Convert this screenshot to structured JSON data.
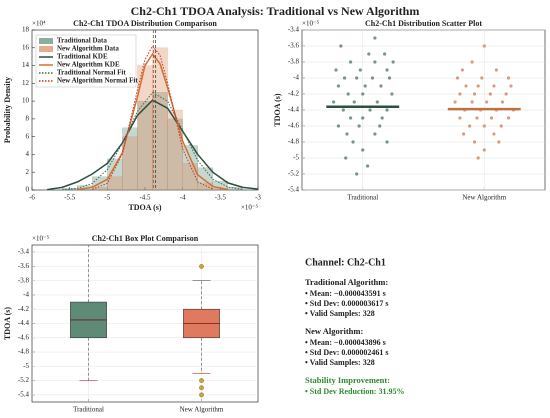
{
  "title": "Ch2-Ch1 TDOA Analysis: Traditional vs New Algorithm",
  "chart_data": [
    {
      "type": "histogram",
      "title": "Ch2-Ch1 TDOA Distribution Comparison",
      "xlabel": "TDOA (s)",
      "ylabel": "Probability Density",
      "x_multiplier": "×10⁻⁵",
      "y_multiplier": "×10⁴",
      "xlim": [
        -6,
        -3
      ],
      "ylim": [
        0,
        18
      ],
      "xticks": [
        -6,
        -5.5,
        -5,
        -4.5,
        -4,
        -3.5,
        -3
      ],
      "yticks": [
        0,
        2,
        4,
        6,
        8,
        10,
        12,
        14,
        16,
        18
      ],
      "grid": false,
      "legend": "upper-left",
      "bins": [
        -5.6,
        -5.4,
        -5.2,
        -5,
        -4.8,
        -4.6,
        -4.4,
        -4.2,
        -4,
        -3.8,
        -3.6,
        -3.4,
        -3.2
      ],
      "histograms": [
        {
          "name": "Traditional Data",
          "color": "#5e8a76",
          "values": [
            0.2,
            0.5,
            1.5,
            3.5,
            7,
            10,
            11,
            8,
            5,
            2.5,
            1,
            0.3
          ]
        },
        {
          "name": "New Algorithm Data",
          "color": "#d98a5e",
          "values": [
            0,
            0,
            0.3,
            1.5,
            6,
            14,
            16,
            9,
            3,
            0.8,
            0.2,
            0
          ]
        }
      ],
      "lines": [
        {
          "name": "Traditional KDE",
          "color": "#2f4f3f",
          "style": "solid",
          "x": [
            -5.8,
            -5.6,
            -5.4,
            -5.2,
            -5,
            -4.8,
            -4.6,
            -4.4,
            -4.2,
            -4,
            -3.8,
            -3.6,
            -3.4,
            -3.2,
            -3
          ],
          "values": [
            0.05,
            0.3,
            0.9,
            1.8,
            3,
            5.3,
            8.4,
            10.1,
            9.2,
            6.6,
            4,
            2,
            0.8,
            0.3,
            0.1
          ]
        },
        {
          "name": "New Algorithm KDE",
          "color": "#d2702f",
          "style": "solid",
          "x": [
            -5.4,
            -5.2,
            -5,
            -4.8,
            -4.6,
            -4.5,
            -4.4,
            -4.3,
            -4.2,
            -4,
            -3.8,
            -3.6,
            -3.4
          ],
          "values": [
            0.05,
            0.3,
            1.2,
            4.2,
            10.5,
            14,
            15.3,
            14.2,
            11.5,
            5.5,
            1.7,
            0.4,
            0.05
          ]
        },
        {
          "name": "Traditional Normal Fit",
          "color": "#3d6b57",
          "style": "dotted",
          "x": [
            -5.6,
            -5.4,
            -5.2,
            -5,
            -4.8,
            -4.6,
            -4.4,
            -4.2,
            -4,
            -3.8,
            -3.6,
            -3.4,
            -3.2
          ],
          "values": [
            0.03,
            0.18,
            0.74,
            2.3,
            5.26,
            8.85,
            10.96,
            10,
            6.72,
            3.33,
            1.21,
            0.33,
            0.07
          ]
        },
        {
          "name": "New Algorithm Normal Fit",
          "color": "#c0392b",
          "style": "dotted",
          "x": [
            -5.2,
            -5,
            -4.8,
            -4.6,
            -4.5,
            -4.4,
            -4.3,
            -4.2,
            -4,
            -3.8,
            -3.6
          ],
          "values": [
            0.07,
            0.75,
            4.05,
            11.27,
            14.67,
            16.2,
            15.16,
            12.03,
            4.62,
            0.92,
            0.1
          ]
        }
      ],
      "mean_lines": [
        {
          "value": -4.3591,
          "color": "#2f4f3f"
        },
        {
          "value": -4.3896,
          "color": "#c0392b"
        }
      ]
    },
    {
      "type": "scatter",
      "title": "Ch2-Ch1 Distribution Scatter Plot",
      "ylabel": "TDOA (s)",
      "y_multiplier": "×10⁻⁵",
      "xlim": [
        0.5,
        2.5
      ],
      "ylim": [
        -5.4,
        -3.4
      ],
      "xticks": [
        {
          "value": 1,
          "label": "Traditional"
        },
        {
          "value": 2,
          "label": "New Algorithm"
        }
      ],
      "yticks": [
        -5.4,
        -5.2,
        -5,
        -4.8,
        -4.6,
        -4.4,
        -4.2,
        -4,
        -3.8,
        -3.6,
        -3.4
      ],
      "grid": true,
      "series": [
        {
          "color": "#3d6b57",
          "x": [
            0.82,
            1.05,
            1.18,
            0.9,
            1.1,
            1.25,
            0.78,
            0.98,
            1.2,
            0.85,
            0.95,
            1.08,
            1.22,
            0.8,
            1.02,
            1.15,
            0.88,
            1.0,
            1.24,
            0.76,
            0.93,
            1.12,
            0.84,
            1.06,
            1.2,
            0.9,
            1.0,
            1.16,
            0.8,
            0.97,
            1.14,
            0.87,
            1.1,
            0.92,
            1.2,
            1.0,
            0.86,
            1.04,
            0.95,
            1.1
          ],
          "values": [
            -3.6,
            -3.7,
            -3.7,
            -3.8,
            -3.8,
            -3.8,
            -3.9,
            -3.9,
            -3.9,
            -4.0,
            -4.0,
            -4.0,
            -4.0,
            -4.1,
            -4.1,
            -4.1,
            -4.2,
            -4.2,
            -4.2,
            -4.3,
            -4.3,
            -4.3,
            -4.4,
            -4.4,
            -4.4,
            -4.5,
            -4.5,
            -4.5,
            -4.6,
            -4.6,
            -4.6,
            -4.7,
            -4.7,
            -4.8,
            -4.8,
            -4.9,
            -5.0,
            -5.1,
            -5.2,
            -3.5
          ]
        },
        {
          "color": "#c8744f",
          "x": [
            1.9,
            1.82,
            2.1,
            1.78,
            1.98,
            2.2,
            1.85,
            1.95,
            2.08,
            2.22,
            1.8,
            1.92,
            2.05,
            2.18,
            1.76,
            1.9,
            2.02,
            2.15,
            1.84,
            1.97,
            2.1,
            2.24,
            1.8,
            1.94,
            2.06,
            2.2,
            1.88,
            2.0,
            2.14,
            1.83,
            2.08,
            1.92,
            2.12,
            2.0,
            1.95,
            2.0
          ],
          "values": [
            -3.8,
            -3.9,
            -3.9,
            -4.0,
            -4.0,
            -4.0,
            -4.1,
            -4.1,
            -4.1,
            -4.1,
            -4.2,
            -4.2,
            -4.2,
            -4.2,
            -4.3,
            -4.3,
            -4.3,
            -4.3,
            -4.4,
            -4.4,
            -4.4,
            -4.4,
            -4.5,
            -4.5,
            -4.5,
            -4.5,
            -4.6,
            -4.6,
            -4.6,
            -4.7,
            -4.7,
            -4.8,
            -4.8,
            -4.9,
            -5.0,
            -3.6
          ]
        }
      ],
      "mean_bars": [
        {
          "x": 1,
          "value": -4.3591,
          "color": "#2f4f3f"
        },
        {
          "x": 2,
          "value": -4.3896,
          "color": "#c0703a"
        }
      ]
    },
    {
      "type": "box",
      "title": "Ch2-Ch1 Box Plot Comparison",
      "ylabel": "TDOA (s)",
      "y_multiplier": "×10⁻⁵",
      "xlim": [
        0.5,
        2.5
      ],
      "ylim": [
        -5.5,
        -3.3
      ],
      "xticks": [
        {
          "value": 1,
          "label": "Traditional"
        },
        {
          "value": 2,
          "label": "New Algorithm"
        }
      ],
      "yticks": [
        -5.4,
        -5.2,
        -5,
        -4.8,
        -4.6,
        -4.4,
        -4.2,
        -4,
        -3.8,
        -3.6,
        -3.4
      ],
      "grid": true,
      "flier_color": "#c9a23a",
      "boxes": [
        {
          "x": 1,
          "color": "#5e8a76",
          "whislo": -5.2,
          "q1": -4.6,
          "med": -4.35,
          "q3": -4.1,
          "whishi": -3.3
        },
        {
          "x": 2,
          "color": "#e07a5f",
          "whislo": -5.1,
          "q1": -4.6,
          "med": -4.4,
          "q3": -4.2,
          "whishi": -3.8,
          "fliers": [
            -3.6,
            -5.2,
            -5.3,
            -5.4
          ]
        }
      ]
    }
  ],
  "stats_panel": {
    "heading": "Channel: Ch2-Ch1",
    "sections": [
      {
        "title": "Traditional Algorithm:",
        "color": "#222222",
        "items": [
          "• Mean: −0.000043591 s",
          "• Std Dev: 0.000003617 s",
          "• Valid Samples: 328"
        ]
      },
      {
        "title": "New Algorithm:",
        "color": "#222222",
        "items": [
          "• Mean: −0.000043896 s",
          "• Std Dev: 0.000002461 s",
          "• Valid Samples: 328"
        ]
      },
      {
        "title": "Stability Improvement:",
        "color": "#2e8b2e",
        "items": [
          "• Std Dev Reduction: 31.95%"
        ]
      }
    ]
  }
}
